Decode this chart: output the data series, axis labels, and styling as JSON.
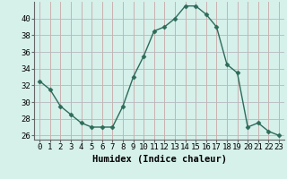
{
  "x": [
    0,
    1,
    2,
    3,
    4,
    5,
    6,
    7,
    8,
    9,
    10,
    11,
    12,
    13,
    14,
    15,
    16,
    17,
    18,
    19,
    20,
    21,
    22,
    23
  ],
  "y": [
    32.5,
    31.5,
    29.5,
    28.5,
    27.5,
    27.0,
    27.0,
    27.0,
    29.5,
    33.0,
    35.5,
    38.5,
    39.0,
    40.0,
    41.5,
    41.5,
    40.5,
    39.0,
    34.5,
    33.5,
    27.0,
    27.5,
    26.5,
    26.0
  ],
  "line_color": "#2d6b5a",
  "marker": "D",
  "marker_color": "#2d6b5a",
  "bg_color": "#d6f0ea",
  "grid_color_v": "#c8a8a8",
  "grid_color_h": "#b8b8c0",
  "xlabel": "Humidex (Indice chaleur)",
  "ylim": [
    25.5,
    42.0
  ],
  "xlim": [
    -0.5,
    23.5
  ],
  "yticks": [
    26,
    28,
    30,
    32,
    34,
    36,
    38,
    40
  ],
  "xticks": [
    0,
    1,
    2,
    3,
    4,
    5,
    6,
    7,
    8,
    9,
    10,
    11,
    12,
    13,
    14,
    15,
    16,
    17,
    18,
    19,
    20,
    21,
    22,
    23
  ],
  "tick_label_fontsize": 6.5,
  "xlabel_fontsize": 7.5
}
